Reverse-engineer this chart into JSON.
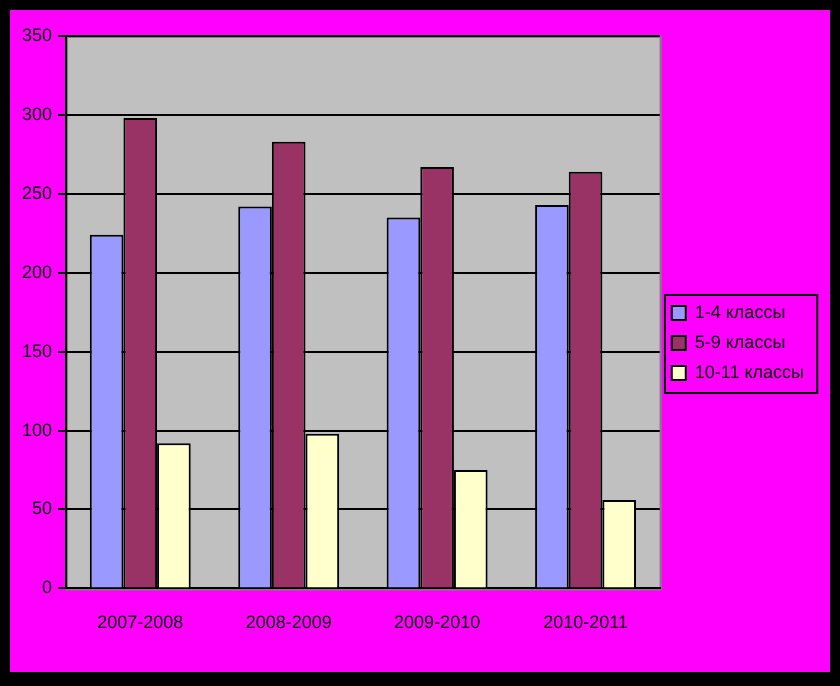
{
  "chart_data": {
    "type": "bar",
    "categories": [
      "2007-2008",
      "2008-2009",
      "2009-2010",
      "2010-2011"
    ],
    "series": [
      {
        "name": "1-4 классы",
        "color": "#9999ff",
        "values": [
          224,
          242,
          235,
          243
        ]
      },
      {
        "name": "5-9 классы",
        "color": "#993366",
        "values": [
          298,
          283,
          267,
          264
        ]
      },
      {
        "name": "10-11 классы",
        "color": "#ffffcc",
        "values": [
          92,
          98,
          75,
          56
        ]
      }
    ],
    "ylim": [
      0,
      350
    ],
    "yticks": [
      0,
      50,
      100,
      150,
      200,
      250,
      300,
      350
    ],
    "grid": "y",
    "legend": "right"
  }
}
